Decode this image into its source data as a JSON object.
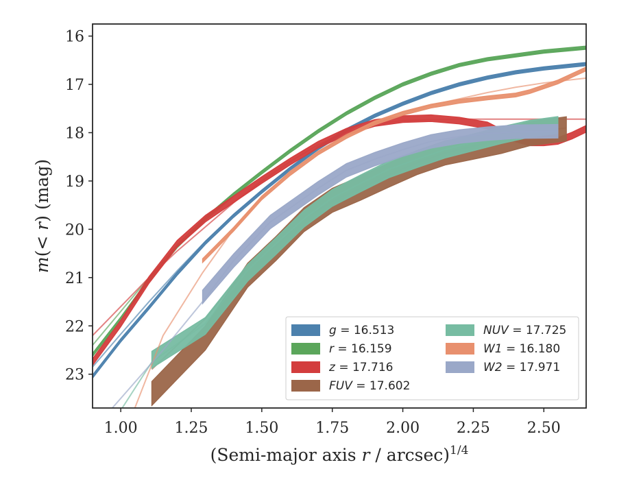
{
  "chart_data": {
    "type": "line",
    "title": "",
    "xlabel": "(Semi-major axis r / arcsec)^{1/4}",
    "ylabel": "m(< r) (mag)",
    "xlim": [
      0.9,
      2.65
    ],
    "ylim": [
      23.7,
      15.75
    ],
    "y_inverted": true,
    "grid": false,
    "legend_position": "lower-right",
    "legend_columns": 2,
    "x_ticks": [
      "1.00",
      "1.25",
      "1.50",
      "1.75",
      "2.00",
      "2.25",
      "2.50"
    ],
    "x_tick_values": [
      1.0,
      1.25,
      1.5,
      1.75,
      2.0,
      2.25,
      2.5
    ],
    "y_ticks": [
      "16",
      "17",
      "18",
      "19",
      "20",
      "21",
      "22",
      "23"
    ],
    "y_tick_values": [
      16,
      17,
      18,
      19,
      20,
      21,
      22,
      23
    ],
    "series": [
      {
        "name": "g",
        "legend": "g = 16.513",
        "color": "#4c81ad",
        "band_width": 0.07,
        "data": [
          [
            0.9,
            23.05
          ],
          [
            1.0,
            22.3
          ],
          [
            1.1,
            21.62
          ],
          [
            1.2,
            20.92
          ],
          [
            1.3,
            20.28
          ],
          [
            1.4,
            19.72
          ],
          [
            1.5,
            19.22
          ],
          [
            1.6,
            18.75
          ],
          [
            1.7,
            18.32
          ],
          [
            1.8,
            17.95
          ],
          [
            1.9,
            17.65
          ],
          [
            2.0,
            17.4
          ],
          [
            2.1,
            17.18
          ],
          [
            2.2,
            17.0
          ],
          [
            2.3,
            16.86
          ],
          [
            2.4,
            16.75
          ],
          [
            2.5,
            16.67
          ],
          [
            2.65,
            16.58
          ]
        ],
        "model": [
          [
            0.9,
            22.85
          ],
          [
            1.0,
            22.17
          ],
          [
            1.1,
            21.5
          ],
          [
            1.2,
            20.86
          ],
          [
            1.3,
            20.25
          ],
          [
            1.4,
            19.7
          ],
          [
            1.5,
            19.2
          ],
          [
            1.6,
            18.74
          ],
          [
            1.7,
            18.32
          ],
          [
            1.8,
            17.95
          ],
          [
            1.9,
            17.65
          ],
          [
            2.0,
            17.4
          ],
          [
            2.1,
            17.18
          ],
          [
            2.2,
            17.0
          ],
          [
            2.3,
            16.86
          ],
          [
            2.4,
            16.75
          ],
          [
            2.5,
            16.66
          ],
          [
            2.65,
            16.57
          ]
        ]
      },
      {
        "name": "r",
        "legend": "r = 16.159",
        "color": "#5ba65b",
        "band_width": 0.07,
        "data": [
          [
            0.9,
            22.6
          ],
          [
            1.0,
            21.85
          ],
          [
            1.1,
            21.05
          ],
          [
            1.2,
            20.35
          ],
          [
            1.3,
            19.78
          ],
          [
            1.4,
            19.28
          ],
          [
            1.5,
            18.82
          ],
          [
            1.6,
            18.38
          ],
          [
            1.7,
            17.97
          ],
          [
            1.8,
            17.6
          ],
          [
            1.9,
            17.28
          ],
          [
            2.0,
            17.0
          ],
          [
            2.1,
            16.78
          ],
          [
            2.2,
            16.6
          ],
          [
            2.3,
            16.48
          ],
          [
            2.4,
            16.4
          ],
          [
            2.5,
            16.32
          ],
          [
            2.65,
            16.24
          ]
        ],
        "model": [
          [
            0.9,
            22.4
          ],
          [
            1.0,
            21.7
          ],
          [
            1.1,
            21.0
          ],
          [
            1.2,
            20.33
          ],
          [
            1.3,
            19.76
          ],
          [
            1.4,
            19.26
          ],
          [
            1.5,
            18.8
          ],
          [
            1.6,
            18.36
          ],
          [
            1.7,
            17.95
          ],
          [
            1.8,
            17.58
          ],
          [
            1.9,
            17.26
          ],
          [
            2.0,
            16.99
          ],
          [
            2.1,
            16.77
          ],
          [
            2.2,
            16.6
          ],
          [
            2.3,
            16.48
          ],
          [
            2.4,
            16.41
          ],
          [
            2.5,
            16.33
          ],
          [
            2.65,
            16.25
          ]
        ]
      },
      {
        "name": "z",
        "legend": "z = 17.716",
        "color": "#d33d3d",
        "band_width": 0.14,
        "data": [
          [
            0.9,
            22.75
          ],
          [
            1.0,
            21.95
          ],
          [
            1.1,
            21.05
          ],
          [
            1.2,
            20.3
          ],
          [
            1.3,
            19.78
          ],
          [
            1.4,
            19.38
          ],
          [
            1.5,
            18.98
          ],
          [
            1.6,
            18.6
          ],
          [
            1.7,
            18.25
          ],
          [
            1.8,
            17.98
          ],
          [
            1.9,
            17.8
          ],
          [
            2.0,
            17.72
          ],
          [
            2.1,
            17.7
          ],
          [
            2.2,
            17.75
          ],
          [
            2.3,
            17.85
          ],
          [
            2.35,
            18.0
          ],
          [
            2.4,
            18.12
          ],
          [
            2.45,
            18.2
          ],
          [
            2.5,
            18.2
          ],
          [
            2.55,
            18.17
          ],
          [
            2.6,
            18.06
          ],
          [
            2.65,
            17.92
          ]
        ],
        "model": [
          [
            0.9,
            22.2
          ],
          [
            1.0,
            21.6
          ],
          [
            1.1,
            21.0
          ],
          [
            1.2,
            20.45
          ],
          [
            1.3,
            19.95
          ],
          [
            1.4,
            19.45
          ],
          [
            1.5,
            19.0
          ],
          [
            1.6,
            18.6
          ],
          [
            1.7,
            18.25
          ],
          [
            1.8,
            17.99
          ],
          [
            1.9,
            17.82
          ],
          [
            2.0,
            17.75
          ],
          [
            2.1,
            17.73
          ],
          [
            2.2,
            17.72
          ],
          [
            2.4,
            17.72
          ],
          [
            2.65,
            17.72
          ]
        ]
      },
      {
        "name": "FUV",
        "legend": "FUV = 17.602",
        "color": "#9b6649",
        "band_width": 0.5,
        "data": [
          [
            1.11,
            23.4
          ],
          [
            1.3,
            22.25
          ],
          [
            1.45,
            20.95
          ],
          [
            1.55,
            20.4
          ],
          [
            1.65,
            19.8
          ],
          [
            1.75,
            19.4
          ],
          [
            1.85,
            19.15
          ],
          [
            1.95,
            18.88
          ],
          [
            2.05,
            18.62
          ],
          [
            2.15,
            18.42
          ],
          [
            2.25,
            18.3
          ],
          [
            2.35,
            18.18
          ],
          [
            2.45,
            18.02
          ],
          [
            2.58,
            17.92
          ]
        ],
        "model": [
          [
            1.11,
            22.9
          ],
          [
            1.3,
            21.85
          ],
          [
            1.45,
            20.75
          ],
          [
            1.55,
            20.35
          ],
          [
            1.65,
            19.78
          ],
          [
            1.75,
            19.42
          ],
          [
            1.85,
            19.15
          ],
          [
            1.95,
            18.88
          ],
          [
            2.05,
            18.62
          ],
          [
            2.15,
            18.42
          ],
          [
            2.25,
            18.28
          ],
          [
            2.35,
            18.15
          ],
          [
            2.45,
            18.0
          ],
          [
            2.58,
            17.9
          ]
        ]
      },
      {
        "name": "NUV",
        "legend": "NUV = 17.725",
        "color": "#77bca2",
        "band_width": 0.35,
        "data": [
          [
            1.11,
            22.7
          ],
          [
            1.3,
            22.0
          ],
          [
            1.45,
            20.9
          ],
          [
            1.55,
            20.35
          ],
          [
            1.65,
            19.78
          ],
          [
            1.75,
            19.35
          ],
          [
            1.85,
            19.05
          ],
          [
            1.95,
            18.76
          ],
          [
            2.05,
            18.55
          ],
          [
            2.15,
            18.35
          ],
          [
            2.25,
            18.2
          ],
          [
            2.35,
            18.05
          ],
          [
            2.45,
            17.92
          ],
          [
            2.55,
            17.84
          ]
        ],
        "model": [
          [
            0.95,
            24.2
          ],
          [
            1.11,
            22.75
          ],
          [
            1.3,
            21.95
          ],
          [
            1.45,
            20.85
          ],
          [
            1.55,
            20.3
          ],
          [
            1.65,
            19.78
          ],
          [
            1.75,
            19.35
          ],
          [
            1.85,
            19.05
          ],
          [
            1.95,
            18.76
          ],
          [
            2.05,
            18.55
          ],
          [
            2.15,
            18.35
          ],
          [
            2.25,
            18.2
          ],
          [
            2.35,
            18.05
          ],
          [
            2.45,
            17.92
          ],
          [
            2.55,
            17.84
          ]
        ]
      },
      {
        "name": "W1",
        "legend": "W1 = 16.180",
        "color": "#e8906e",
        "band_width": 0.08,
        "data": [
          [
            1.29,
            20.65
          ],
          [
            1.4,
            20.0
          ],
          [
            1.5,
            19.35
          ],
          [
            1.6,
            18.85
          ],
          [
            1.7,
            18.42
          ],
          [
            1.8,
            18.08
          ],
          [
            1.9,
            17.8
          ],
          [
            2.0,
            17.6
          ],
          [
            2.1,
            17.45
          ],
          [
            2.2,
            17.35
          ],
          [
            2.3,
            17.28
          ],
          [
            2.4,
            17.22
          ],
          [
            2.45,
            17.15
          ],
          [
            2.55,
            16.95
          ],
          [
            2.65,
            16.68
          ]
        ],
        "model": [
          [
            1.05,
            23.7
          ],
          [
            1.15,
            22.2
          ],
          [
            1.29,
            20.9
          ],
          [
            1.4,
            20.0
          ],
          [
            1.5,
            19.35
          ],
          [
            1.6,
            18.8
          ],
          [
            1.7,
            18.4
          ],
          [
            1.8,
            18.05
          ],
          [
            1.9,
            17.78
          ],
          [
            2.0,
            17.58
          ],
          [
            2.1,
            17.43
          ],
          [
            2.2,
            17.3
          ],
          [
            2.3,
            17.17
          ],
          [
            2.4,
            17.06
          ],
          [
            2.5,
            16.97
          ],
          [
            2.65,
            16.87
          ]
        ]
      },
      {
        "name": "W2",
        "legend": "W2 = 17.971",
        "color": "#9aa8c8",
        "band_width": 0.28,
        "data": [
          [
            1.29,
            21.4
          ],
          [
            1.4,
            20.65
          ],
          [
            1.53,
            19.85
          ],
          [
            1.7,
            19.15
          ],
          [
            1.8,
            18.78
          ],
          [
            1.9,
            18.55
          ],
          [
            2.0,
            18.35
          ],
          [
            2.1,
            18.18
          ],
          [
            2.2,
            18.08
          ],
          [
            2.3,
            18.02
          ],
          [
            2.4,
            17.98
          ],
          [
            2.55,
            17.97
          ]
        ],
        "model": [
          [
            0.97,
            23.7
          ],
          [
            1.15,
            22.5
          ],
          [
            1.29,
            21.5
          ],
          [
            1.4,
            20.65
          ],
          [
            1.53,
            19.85
          ],
          [
            1.7,
            19.15
          ],
          [
            1.8,
            18.78
          ],
          [
            1.9,
            18.55
          ],
          [
            2.0,
            18.35
          ],
          [
            2.1,
            18.18
          ],
          [
            2.2,
            18.08
          ],
          [
            2.3,
            18.02
          ],
          [
            2.4,
            17.98
          ],
          [
            2.55,
            17.97
          ]
        ]
      }
    ]
  }
}
